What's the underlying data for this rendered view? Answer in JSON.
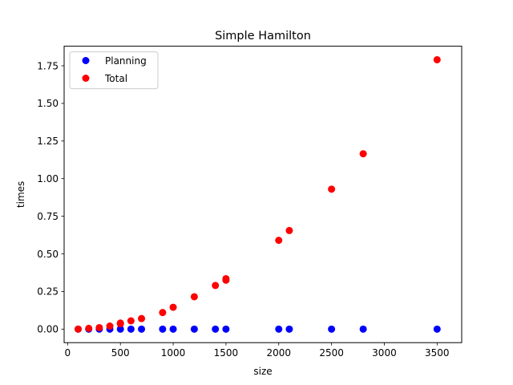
{
  "chart_data": {
    "type": "scatter",
    "title": "Simple Hamilton",
    "xlabel": "size",
    "ylabel": "times",
    "xlim": [
      -33,
      3733
    ],
    "ylim": [
      -0.09,
      1.88
    ],
    "xticks": [
      0,
      500,
      1000,
      1500,
      2000,
      2500,
      3000,
      3500
    ],
    "xtick_labels": [
      "0",
      "500",
      "1000",
      "1500",
      "2000",
      "2500",
      "3000",
      "3500"
    ],
    "yticks": [
      0.0,
      0.25,
      0.5,
      0.75,
      1.0,
      1.25,
      1.5,
      1.75
    ],
    "ytick_labels": [
      "0.00",
      "0.25",
      "0.50",
      "0.75",
      "1.00",
      "1.25",
      "1.50",
      "1.75"
    ],
    "grid": false,
    "legend_position": "upper-left",
    "series": [
      {
        "name": "Planning",
        "color": "#0000ff",
        "points": [
          [
            100,
            0.0
          ],
          [
            200,
            0.0
          ],
          [
            300,
            0.0
          ],
          [
            400,
            0.0
          ],
          [
            500,
            0.0
          ],
          [
            600,
            0.0
          ],
          [
            700,
            0.0
          ],
          [
            900,
            0.0
          ],
          [
            1000,
            0.0
          ],
          [
            1200,
            0.0
          ],
          [
            1400,
            0.0
          ],
          [
            1500,
            0.0
          ],
          [
            2000,
            0.0
          ],
          [
            2100,
            0.0
          ],
          [
            2500,
            0.0
          ],
          [
            2800,
            0.0
          ],
          [
            3500,
            0.0
          ]
        ]
      },
      {
        "name": "Total",
        "color": "#ff0000",
        "points": [
          [
            100,
            0.0
          ],
          [
            200,
            0.005
          ],
          [
            300,
            0.01
          ],
          [
            400,
            0.02
          ],
          [
            500,
            0.035
          ],
          [
            500,
            0.04
          ],
          [
            600,
            0.055
          ],
          [
            700,
            0.07
          ],
          [
            900,
            0.11
          ],
          [
            1000,
            0.145
          ],
          [
            1200,
            0.215
          ],
          [
            1400,
            0.29
          ],
          [
            1500,
            0.325
          ],
          [
            1500,
            0.335
          ],
          [
            2000,
            0.59
          ],
          [
            2100,
            0.655
          ],
          [
            2500,
            0.93
          ],
          [
            2800,
            1.165
          ],
          [
            3500,
            1.79
          ]
        ]
      }
    ]
  }
}
